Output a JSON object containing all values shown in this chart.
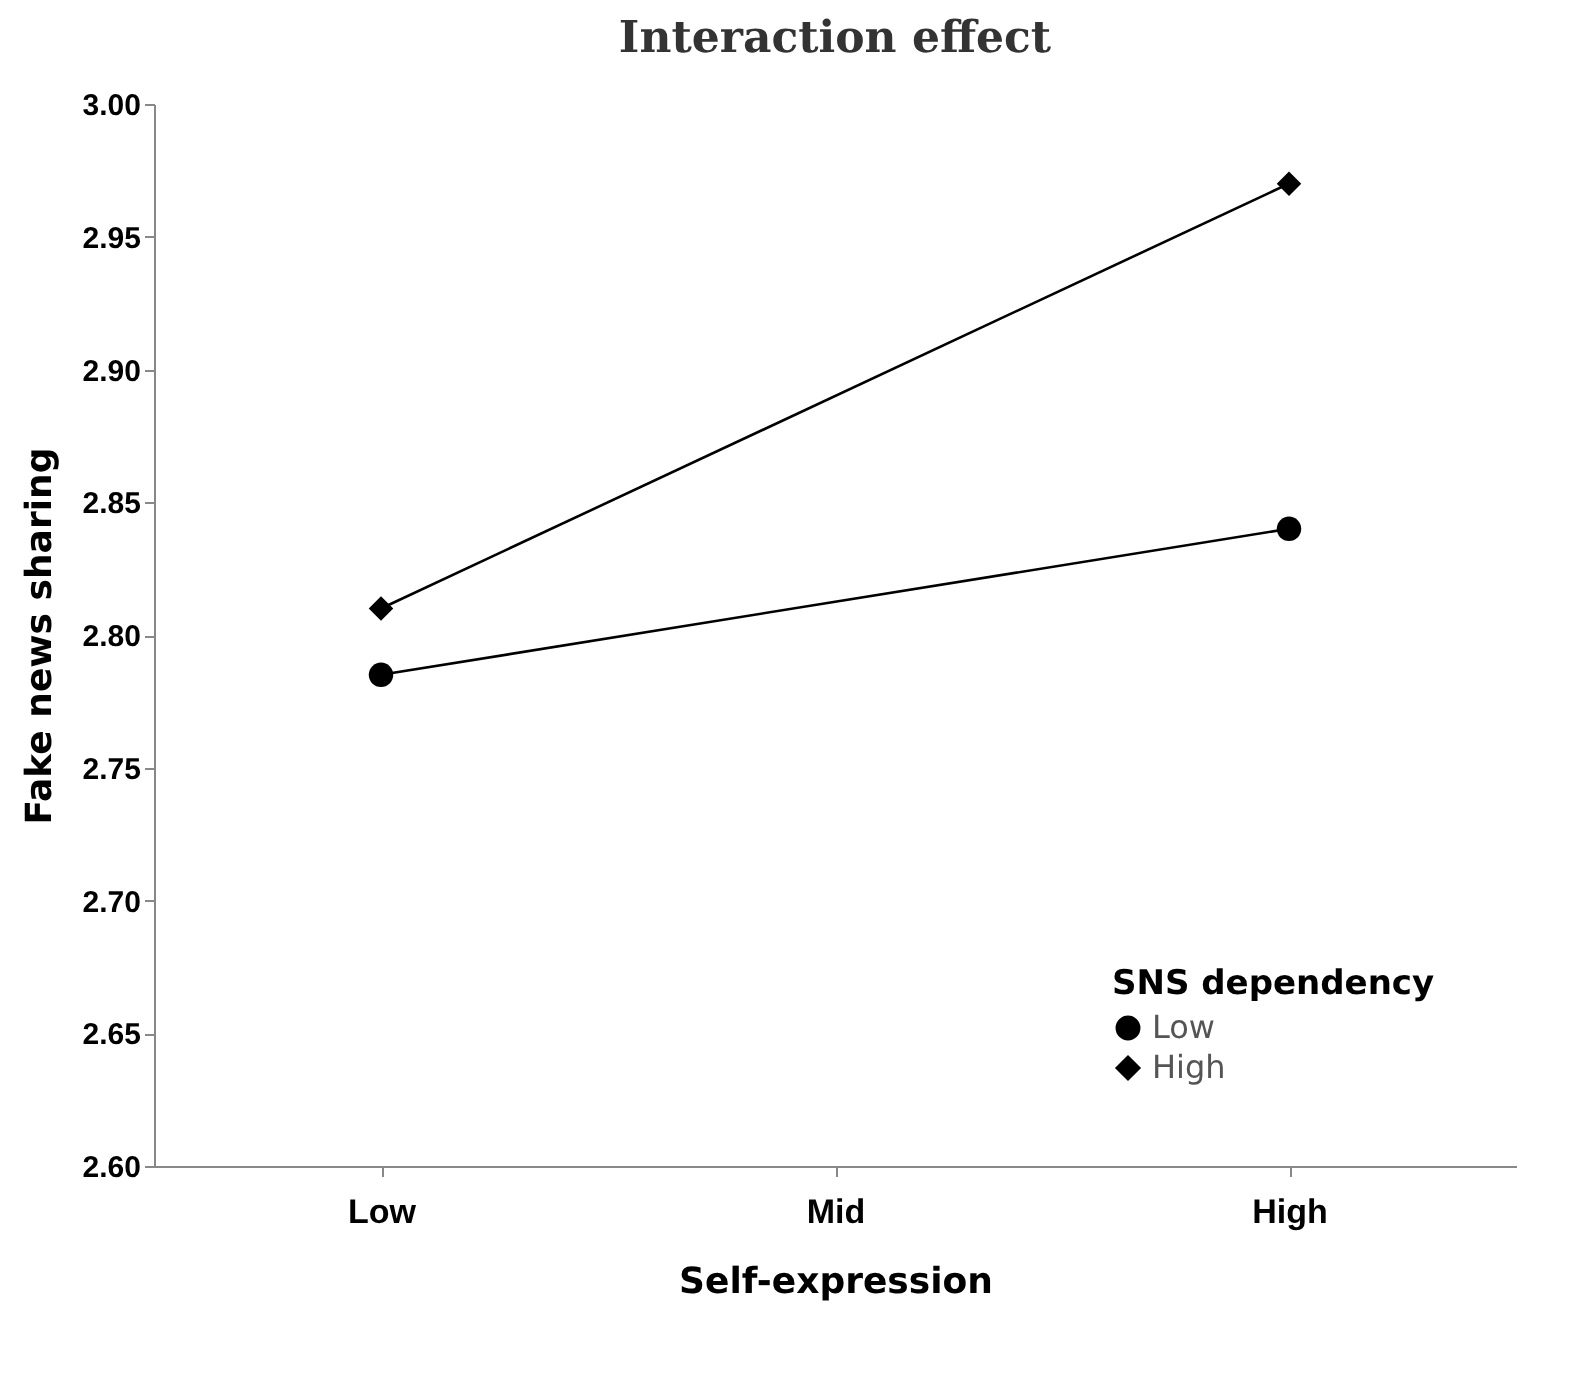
{
  "chart_data": {
    "type": "line",
    "title": "Interaction effect",
    "xlabel": "Self-expression",
    "ylabel": "Fake news sharing",
    "legend_title": "SNS dependency",
    "categories": [
      "Low",
      "Mid",
      "High"
    ],
    "series": [
      {
        "name": "Low",
        "color": "#000000",
        "marker": "circle",
        "values": [
          2.785,
          null,
          2.84
        ]
      },
      {
        "name": "High",
        "color": "#000000",
        "marker": "diamond",
        "values": [
          2.81,
          null,
          2.97
        ]
      }
    ],
    "ylim": [
      2.6,
      3.0
    ],
    "yticks": [
      {
        "value": 2.6,
        "label": "2.60"
      },
      2.65,
      {
        "value": 2.7,
        "label": "2.70"
      },
      2.75,
      {
        "value": 2.8,
        "label": "2.80"
      },
      2.85,
      {
        "value": 2.9,
        "label": "2.90"
      },
      2.95,
      {
        "value": 3.0,
        "label": "3.00"
      }
    ],
    "grid": false,
    "legend": "bottom right",
    "line_style": "solid"
  }
}
